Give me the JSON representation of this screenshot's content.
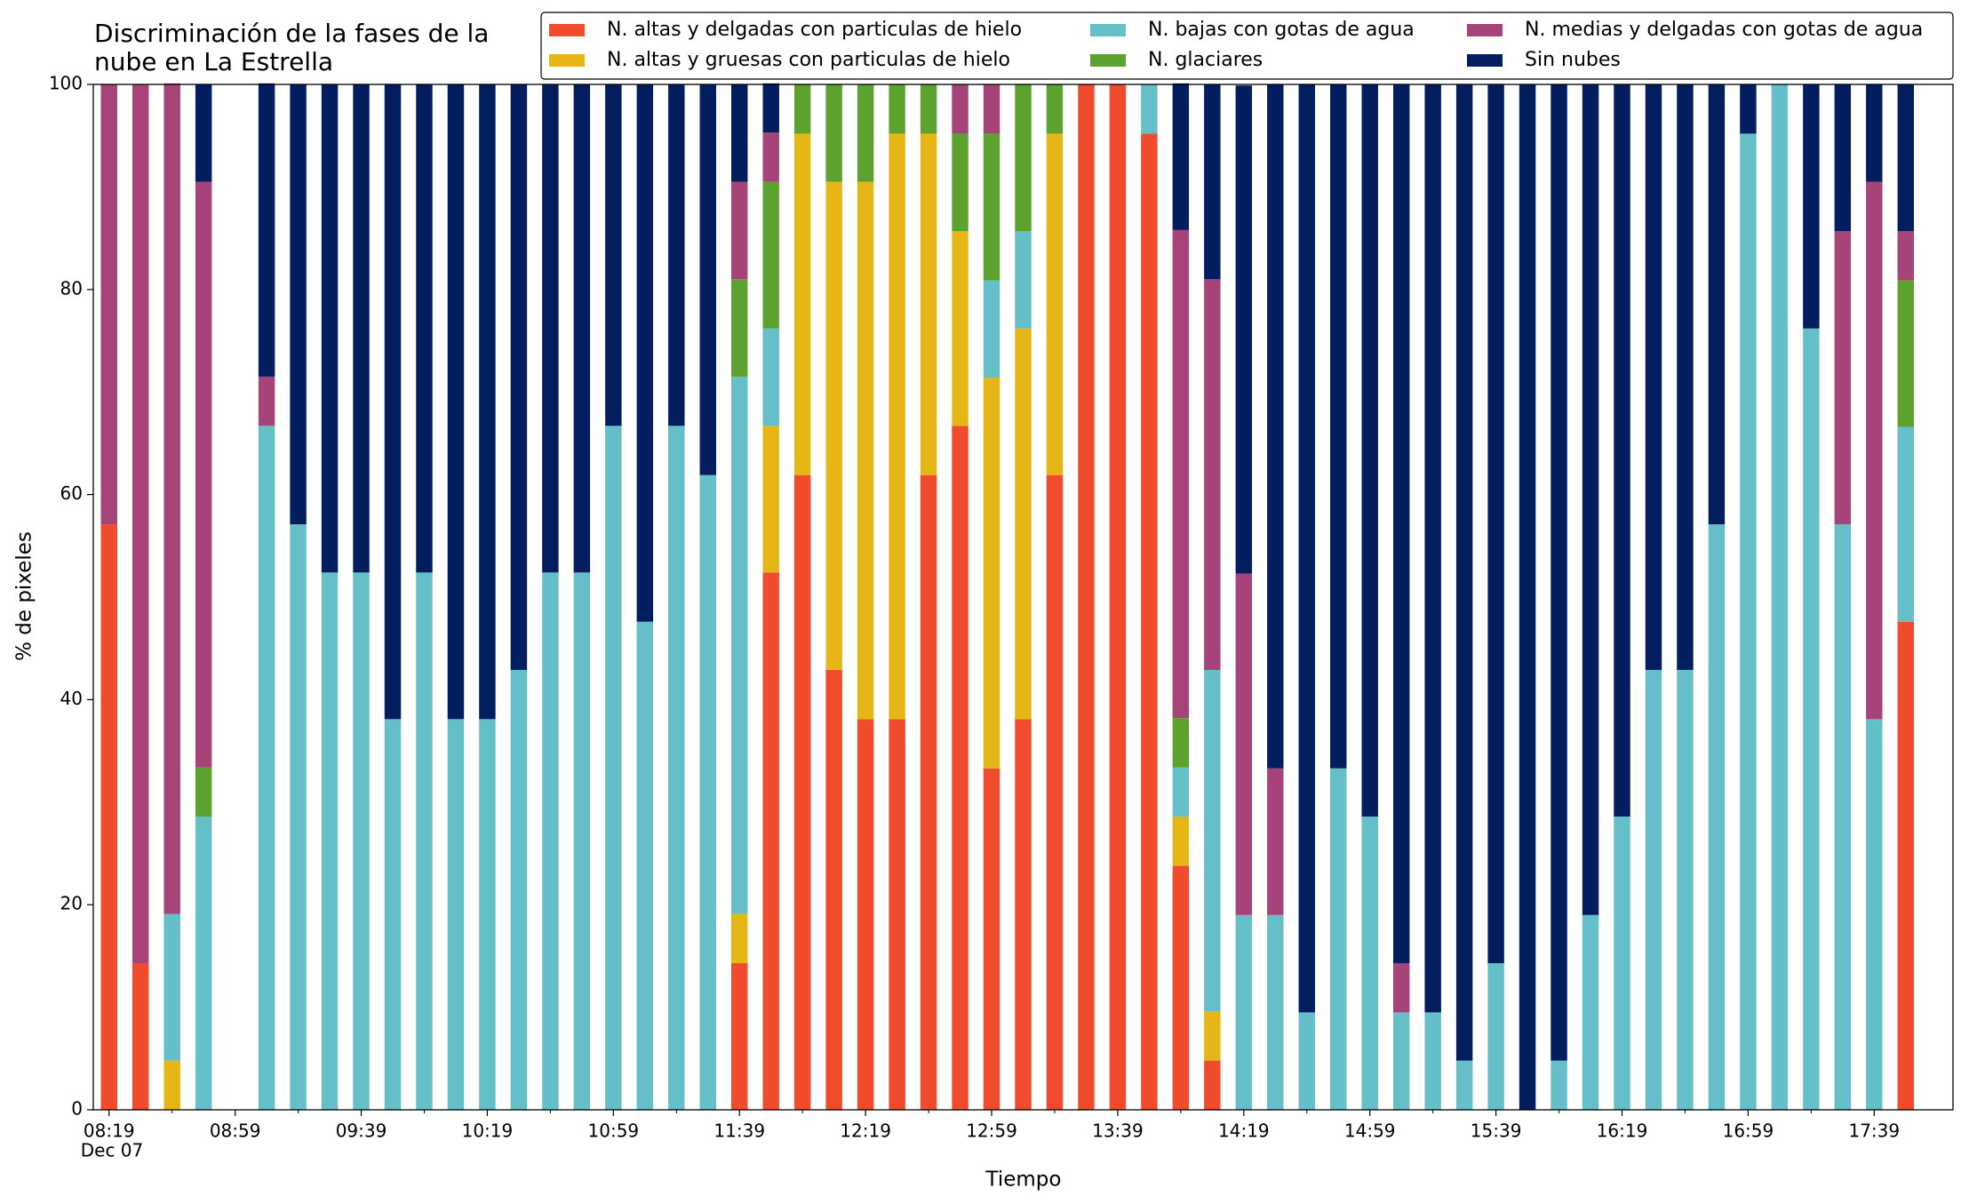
{
  "chart_data": {
    "type": "stacked_bar",
    "title": "Discriminación de la fases de la\nnube en La Estrella",
    "x_label": "Tiempo",
    "y_label": "% de pixeles",
    "x_sublabel": "Dec 07",
    "categories": [
      "08:19",
      null,
      null,
      null,
      "08:59",
      null,
      null,
      null,
      "09:39",
      null,
      null,
      null,
      "10:19",
      null,
      null,
      null,
      "10:59",
      null,
      null,
      null,
      "11:39",
      null,
      null,
      null,
      "12:19",
      null,
      null,
      null,
      "12:59",
      null,
      null,
      null,
      "13:39",
      null,
      null,
      null,
      "14:19",
      null,
      null,
      null,
      "14:59",
      null,
      null,
      null,
      "15:39",
      null,
      null,
      null,
      "16:19",
      null,
      null,
      null,
      "16:59",
      null,
      null,
      null,
      "17:39",
      null
    ],
    "ylim": [
      0,
      100
    ],
    "yticks": [
      0,
      20,
      40,
      60,
      80,
      100
    ],
    "grid": false,
    "series": [
      {
        "name": "N. altas y delgadas con particulas de hielo",
        "color": "#ef4b2c",
        "values": [
          57.1,
          14.3,
          0,
          0,
          0,
          0,
          0,
          0,
          0,
          0,
          0,
          0,
          0,
          0,
          0,
          0,
          0,
          0,
          0,
          0,
          14.3,
          52.4,
          61.9,
          42.9,
          38.1,
          38.1,
          61.9,
          66.7,
          33.3,
          38.1,
          61.9,
          100,
          100,
          95.2,
          23.8,
          4.8,
          0,
          0,
          0,
          0,
          0,
          0,
          0,
          0,
          0,
          0,
          0,
          0,
          0,
          0,
          0,
          0,
          0,
          0,
          0,
          0,
          0,
          47.6
        ]
      },
      {
        "name": "N. altas y gruesas con particulas de hielo",
        "color": "#e5b616",
        "values": [
          0,
          0,
          4.8,
          0,
          0,
          0,
          0,
          0,
          0,
          0,
          0,
          0,
          0,
          0,
          0,
          0,
          0,
          0,
          0,
          0,
          4.8,
          14.3,
          33.3,
          47.6,
          52.4,
          57.1,
          33.3,
          19.0,
          38.1,
          38.1,
          33.3,
          0,
          0,
          0,
          4.8,
          4.8,
          0,
          0,
          0,
          0,
          0,
          0,
          0,
          0,
          0,
          0,
          0,
          0,
          0,
          0,
          0,
          0,
          0,
          0,
          0,
          0,
          0,
          0
        ]
      },
      {
        "name": "N. bajas con gotas de agua",
        "color": "#65bfc9",
        "values": [
          0,
          0,
          14.3,
          28.6,
          0,
          66.7,
          57.1,
          52.4,
          52.4,
          38.1,
          52.4,
          38.1,
          38.1,
          42.9,
          52.4,
          52.4,
          66.7,
          47.6,
          66.7,
          61.9,
          52.4,
          9.5,
          0,
          0,
          0,
          0,
          0,
          0,
          9.5,
          9.5,
          0,
          0,
          0,
          4.8,
          4.8,
          33.3,
          19.0,
          19.0,
          9.5,
          33.3,
          28.6,
          9.5,
          9.5,
          4.8,
          14.3,
          0,
          4.8,
          19.0,
          28.6,
          42.9,
          42.9,
          57.1,
          95.2,
          100,
          76.2,
          57.1,
          38.1,
          19.0
        ]
      },
      {
        "name": "N. glaciares",
        "color": "#5da22f",
        "values": [
          0,
          0,
          0,
          4.8,
          0,
          0,
          0,
          0,
          0,
          0,
          0,
          0,
          0,
          0,
          0,
          0,
          0,
          0,
          0,
          0,
          9.5,
          14.3,
          4.8,
          9.5,
          9.5,
          4.8,
          4.8,
          9.5,
          14.3,
          14.3,
          4.8,
          0,
          0,
          0,
          4.8,
          0,
          0,
          0,
          0,
          0,
          0,
          0,
          0,
          0,
          0,
          0,
          0,
          0,
          0,
          0,
          0,
          0,
          0,
          0,
          0,
          0,
          0,
          14.3
        ]
      },
      {
        "name": "N. medias y delgadas con gotas de agua",
        "color": "#a64479",
        "values": [
          42.9,
          85.7,
          81.0,
          57.1,
          0,
          4.8,
          0,
          0,
          0,
          0,
          0,
          0,
          0,
          0,
          0,
          0,
          0,
          0,
          0,
          0,
          9.5,
          4.8,
          0,
          0,
          0,
          0,
          0,
          4.8,
          4.8,
          0,
          0,
          0,
          0,
          0,
          47.6,
          38.1,
          33.3,
          14.3,
          0,
          0,
          0,
          4.8,
          0,
          0,
          0,
          0,
          0,
          0,
          0,
          0,
          0,
          0,
          0,
          0,
          0,
          28.6,
          52.4,
          4.8
        ]
      },
      {
        "name": "Sin nubes",
        "color": "#021e5f",
        "values": [
          0,
          0,
          0,
          9.5,
          0,
          28.6,
          42.9,
          47.6,
          47.6,
          61.9,
          47.6,
          61.9,
          61.9,
          57.1,
          47.6,
          47.6,
          33.3,
          52.4,
          33.3,
          38.1,
          9.5,
          4.8,
          0,
          0,
          0,
          0,
          0,
          0,
          0,
          0,
          0,
          0,
          0,
          0,
          14.3,
          19.0,
          47.6,
          66.7,
          90.5,
          66.7,
          71.4,
          85.7,
          90.5,
          95.2,
          85.7,
          100,
          95.2,
          81.0,
          71.4,
          57.1,
          57.1,
          42.9,
          4.8,
          0,
          23.8,
          14.3,
          9.5,
          14.3
        ]
      }
    ]
  }
}
